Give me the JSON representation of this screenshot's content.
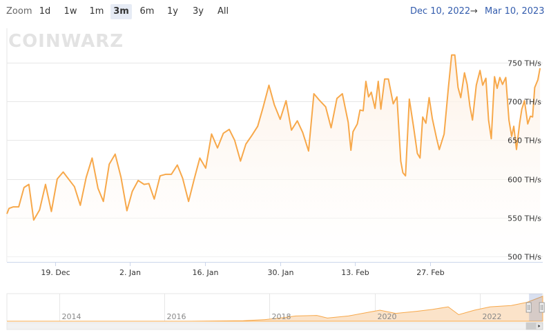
{
  "toolbar": {
    "zoom_label": "Zoom",
    "buttons": [
      "1d",
      "1w",
      "1m",
      "3m",
      "6m",
      "1y",
      "3y",
      "All"
    ],
    "active": "3m",
    "range_from": "Dec 10, 2022",
    "range_sep": "→",
    "range_to": "Mar 10, 2023"
  },
  "watermark": "COINWARZ",
  "colors": {
    "line": "#f7a84a",
    "area_top": "#fdf0e4",
    "grid": "#e6e6e6",
    "range_text": "#335cad",
    "navigator_fill": "#fbe3c9"
  },
  "chart_data": {
    "type": "area",
    "xlabel": "",
    "ylabel": "",
    "y_unit": "TH/s",
    "ylim": [
      500,
      770
    ],
    "y_ticks": [
      "500 TH/s",
      "550 TH/s",
      "600 TH/s",
      "650 TH/s",
      "700 TH/s",
      "750 TH/s"
    ],
    "y_tick_values": [
      500,
      550,
      600,
      650,
      700,
      750
    ],
    "x_ticks": [
      "19. Dec",
      "2. Jan",
      "16. Jan",
      "30. Jan",
      "13. Feb",
      "27. Feb"
    ],
    "x_tick_days": [
      9,
      23,
      37,
      51,
      65,
      79
    ],
    "x_unit_note_hidden": true,
    "grid": true,
    "legend": "none",
    "start_date": "2022-12-10",
    "end_date": "2023-03-10",
    "series": [
      {
        "values": [
          [
            0,
            555
          ],
          [
            0.4,
            562
          ],
          [
            1.2,
            564
          ],
          [
            2.2,
            564
          ],
          [
            3.2,
            589
          ],
          [
            4.1,
            593
          ],
          [
            5.0,
            547
          ],
          [
            6.1,
            560
          ],
          [
            7.2,
            593
          ],
          [
            8.3,
            558
          ],
          [
            9.4,
            600
          ],
          [
            10.5,
            609
          ],
          [
            11.6,
            599
          ],
          [
            12.6,
            590
          ],
          [
            13.7,
            566
          ],
          [
            14.8,
            602
          ],
          [
            15.9,
            627
          ],
          [
            17.0,
            588
          ],
          [
            18.0,
            571
          ],
          [
            19.1,
            619
          ],
          [
            20.2,
            632
          ],
          [
            21.3,
            602
          ],
          [
            22.4,
            559
          ],
          [
            23.4,
            584
          ],
          [
            24.5,
            598
          ],
          [
            25.6,
            593
          ],
          [
            26.5,
            594
          ],
          [
            27.5,
            574
          ],
          [
            28.6,
            604
          ],
          [
            29.6,
            606
          ],
          [
            30.7,
            606
          ],
          [
            31.8,
            618
          ],
          [
            32.8,
            601
          ],
          [
            33.9,
            571
          ],
          [
            35.0,
            601
          ],
          [
            36.0,
            627
          ],
          [
            37.1,
            614
          ],
          [
            38.2,
            658
          ],
          [
            39.3,
            640
          ],
          [
            40.4,
            659
          ],
          [
            41.5,
            664
          ],
          [
            42.5,
            650
          ],
          [
            43.6,
            623
          ],
          [
            44.6,
            645
          ],
          [
            45.7,
            656
          ],
          [
            46.8,
            668
          ],
          [
            47.8,
            692
          ],
          [
            48.9,
            721
          ],
          [
            49.9,
            696
          ],
          [
            51.0,
            677
          ],
          [
            52.1,
            701
          ],
          [
            53.1,
            663
          ],
          [
            54.2,
            675
          ],
          [
            55.2,
            660
          ],
          [
            56.3,
            636
          ],
          [
            57.3,
            710
          ],
          [
            58.4,
            701
          ],
          [
            59.5,
            693
          ],
          [
            60.5,
            666
          ],
          [
            61.6,
            704
          ],
          [
            62.6,
            710
          ],
          [
            63.7,
            673
          ],
          [
            64.2,
            637
          ],
          [
            64.6,
            661
          ],
          [
            65.4,
            671
          ],
          [
            65.9,
            689
          ],
          [
            66.5,
            688
          ],
          [
            67.0,
            726
          ],
          [
            67.5,
            706
          ],
          [
            68.0,
            712
          ],
          [
            68.7,
            691
          ],
          [
            69.3,
            726
          ],
          [
            69.8,
            690
          ],
          [
            70.5,
            729
          ],
          [
            71.2,
            729
          ],
          [
            72.1,
            697
          ],
          [
            72.8,
            706
          ],
          [
            73.5,
            623
          ],
          [
            73.9,
            608
          ],
          [
            74.4,
            604
          ],
          [
            75.1,
            703
          ],
          [
            75.9,
            667
          ],
          [
            76.6,
            633
          ],
          [
            77.1,
            627
          ],
          [
            77.6,
            680
          ],
          [
            78.2,
            672
          ],
          [
            78.8,
            705
          ],
          [
            79.4,
            678
          ],
          [
            80.2,
            652
          ],
          [
            80.7,
            638
          ],
          [
            81.6,
            658
          ],
          [
            82.4,
            718
          ],
          [
            83.0,
            760
          ],
          [
            83.6,
            760
          ],
          [
            84.2,
            718
          ],
          [
            84.7,
            705
          ],
          [
            85.4,
            737
          ],
          [
            85.9,
            722
          ],
          [
            86.4,
            694
          ],
          [
            86.9,
            676
          ],
          [
            87.6,
            721
          ],
          [
            88.3,
            740
          ],
          [
            88.8,
            721
          ],
          [
            89.4,
            730
          ],
          [
            89.9,
            676
          ],
          [
            90.4,
            652
          ],
          [
            91.0,
            732
          ],
          [
            91.5,
            717
          ],
          [
            92.0,
            731
          ],
          [
            92.5,
            722
          ],
          [
            93.1,
            731
          ],
          [
            93.7,
            676
          ],
          [
            94.2,
            655
          ],
          [
            94.6,
            668
          ],
          [
            95.1,
            638
          ],
          [
            95.7,
            672
          ],
          [
            96.1,
            690
          ],
          [
            96.6,
            701
          ],
          [
            97.2,
            671
          ],
          [
            97.7,
            681
          ],
          [
            98.1,
            680
          ],
          [
            98.5,
            718
          ],
          [
            99.1,
            728
          ],
          [
            99.5,
            743
          ]
        ]
      }
    ],
    "navigator": {
      "x_ticks": [
        "2014",
        "2016",
        "2018",
        "2020",
        "2022"
      ],
      "x_tick_years": [
        2014,
        2016,
        2018,
        2020,
        2022
      ],
      "x_range_years": [
        2013,
        2023.2
      ],
      "series_years": [
        [
          2013.0,
          0.0
        ],
        [
          2016.5,
          0.0
        ],
        [
          2017.5,
          0.02
        ],
        [
          2017.9,
          0.06
        ],
        [
          2018.2,
          0.12
        ],
        [
          2018.5,
          0.2
        ],
        [
          2018.9,
          0.22
        ],
        [
          2019.1,
          0.12
        ],
        [
          2019.5,
          0.2
        ],
        [
          2019.9,
          0.35
        ],
        [
          2020.1,
          0.42
        ],
        [
          2020.4,
          0.3
        ],
        [
          2020.8,
          0.38
        ],
        [
          2021.1,
          0.45
        ],
        [
          2021.4,
          0.55
        ],
        [
          2021.6,
          0.25
        ],
        [
          2021.9,
          0.42
        ],
        [
          2022.2,
          0.55
        ],
        [
          2022.6,
          0.6
        ],
        [
          2022.9,
          0.72
        ],
        [
          2023.2,
          0.95
        ]
      ],
      "selected_years": [
        2022.94,
        2023.19
      ]
    }
  }
}
